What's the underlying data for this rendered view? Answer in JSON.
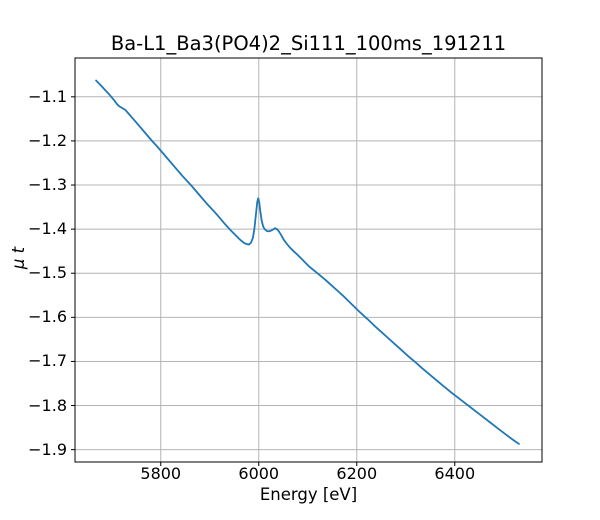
{
  "chart_data": {
    "type": "line",
    "title": "Ba-L1_Ba3(PO4)2_Si111_100ms_191211",
    "xlabel": "Energy [eV]",
    "ylabel": "μ t",
    "xlim": [
      5625,
      6578
    ],
    "ylim": [
      -1.928,
      -1.012
    ],
    "grid": true,
    "legend": "none",
    "grid_color": "#b4b4b4",
    "spine_color": "#000000",
    "line_color": "#1f77b4",
    "background_color": "#ffffff",
    "xticks": [
      {
        "value": 5800,
        "label": "5800"
      },
      {
        "value": 6000,
        "label": "6000"
      },
      {
        "value": 6200,
        "label": "6200"
      },
      {
        "value": 6400,
        "label": "6400"
      }
    ],
    "yticks": [
      {
        "value": -1.1,
        "label": "−1.1"
      },
      {
        "value": -1.2,
        "label": "−1.2"
      },
      {
        "value": -1.3,
        "label": "−1.3"
      },
      {
        "value": -1.4,
        "label": "−1.4"
      },
      {
        "value": -1.5,
        "label": "−1.5"
      },
      {
        "value": -1.6,
        "label": "−1.6"
      },
      {
        "value": -1.7,
        "label": "−1.7"
      },
      {
        "value": -1.8,
        "label": "−1.8"
      },
      {
        "value": -1.9,
        "label": "−1.9"
      }
    ],
    "series": [
      {
        "name": "mu_t_spectrum",
        "points": [
          [
            5668,
            -1.063
          ],
          [
            5676,
            -1.072
          ],
          [
            5686,
            -1.084
          ],
          [
            5696,
            -1.096
          ],
          [
            5705,
            -1.108
          ],
          [
            5711,
            -1.117
          ],
          [
            5716,
            -1.122
          ],
          [
            5722,
            -1.126
          ],
          [
            5728,
            -1.13
          ],
          [
            5735,
            -1.139
          ],
          [
            5743,
            -1.149
          ],
          [
            5753,
            -1.162
          ],
          [
            5763,
            -1.175
          ],
          [
            5773,
            -1.188
          ],
          [
            5783,
            -1.201
          ],
          [
            5793,
            -1.213
          ],
          [
            5803,
            -1.226
          ],
          [
            5813,
            -1.239
          ],
          [
            5823,
            -1.252
          ],
          [
            5833,
            -1.265
          ],
          [
            5843,
            -1.278
          ],
          [
            5853,
            -1.29
          ],
          [
            5863,
            -1.302
          ],
          [
            5873,
            -1.315
          ],
          [
            5883,
            -1.328
          ],
          [
            5893,
            -1.341
          ],
          [
            5903,
            -1.353
          ],
          [
            5913,
            -1.365
          ],
          [
            5923,
            -1.378
          ],
          [
            5933,
            -1.391
          ],
          [
            5943,
            -1.403
          ],
          [
            5951,
            -1.412
          ],
          [
            5959,
            -1.421
          ],
          [
            5965,
            -1.427
          ],
          [
            5971,
            -1.432
          ],
          [
            5976,
            -1.434
          ],
          [
            5980,
            -1.435
          ],
          [
            5984,
            -1.431
          ],
          [
            5988,
            -1.42
          ],
          [
            5991,
            -1.4
          ],
          [
            5994,
            -1.369
          ],
          [
            5997,
            -1.338
          ],
          [
            5999,
            -1.33
          ],
          [
            6001,
            -1.34
          ],
          [
            6003,
            -1.358
          ],
          [
            6006,
            -1.381
          ],
          [
            6009,
            -1.394
          ],
          [
            6012,
            -1.4
          ],
          [
            6016,
            -1.404
          ],
          [
            6020,
            -1.405
          ],
          [
            6024,
            -1.404
          ],
          [
            6029,
            -1.401
          ],
          [
            6033,
            -1.398
          ],
          [
            6037,
            -1.4
          ],
          [
            6041,
            -1.405
          ],
          [
            6046,
            -1.414
          ],
          [
            6051,
            -1.424
          ],
          [
            6057,
            -1.433
          ],
          [
            6063,
            -1.441
          ],
          [
            6071,
            -1.45
          ],
          [
            6079,
            -1.458
          ],
          [
            6087,
            -1.467
          ],
          [
            6095,
            -1.476
          ],
          [
            6103,
            -1.485
          ],
          [
            6113,
            -1.494
          ],
          [
            6123,
            -1.503
          ],
          [
            6135,
            -1.514
          ],
          [
            6147,
            -1.526
          ],
          [
            6159,
            -1.538
          ],
          [
            6171,
            -1.55
          ],
          [
            6183,
            -1.563
          ],
          [
            6195,
            -1.576
          ],
          [
            6207,
            -1.589
          ],
          [
            6221,
            -1.603
          ],
          [
            6235,
            -1.618
          ],
          [
            6249,
            -1.632
          ],
          [
            6263,
            -1.646
          ],
          [
            6277,
            -1.66
          ],
          [
            6291,
            -1.674
          ],
          [
            6305,
            -1.688
          ],
          [
            6319,
            -1.701
          ],
          [
            6333,
            -1.715
          ],
          [
            6347,
            -1.728
          ],
          [
            6361,
            -1.741
          ],
          [
            6375,
            -1.754
          ],
          [
            6389,
            -1.767
          ],
          [
            6403,
            -1.779
          ],
          [
            6417,
            -1.791
          ],
          [
            6431,
            -1.803
          ],
          [
            6445,
            -1.815
          ],
          [
            6459,
            -1.827
          ],
          [
            6473,
            -1.839
          ],
          [
            6487,
            -1.851
          ],
          [
            6501,
            -1.863
          ],
          [
            6513,
            -1.873
          ],
          [
            6523,
            -1.881
          ],
          [
            6531,
            -1.887
          ]
        ]
      }
    ]
  }
}
